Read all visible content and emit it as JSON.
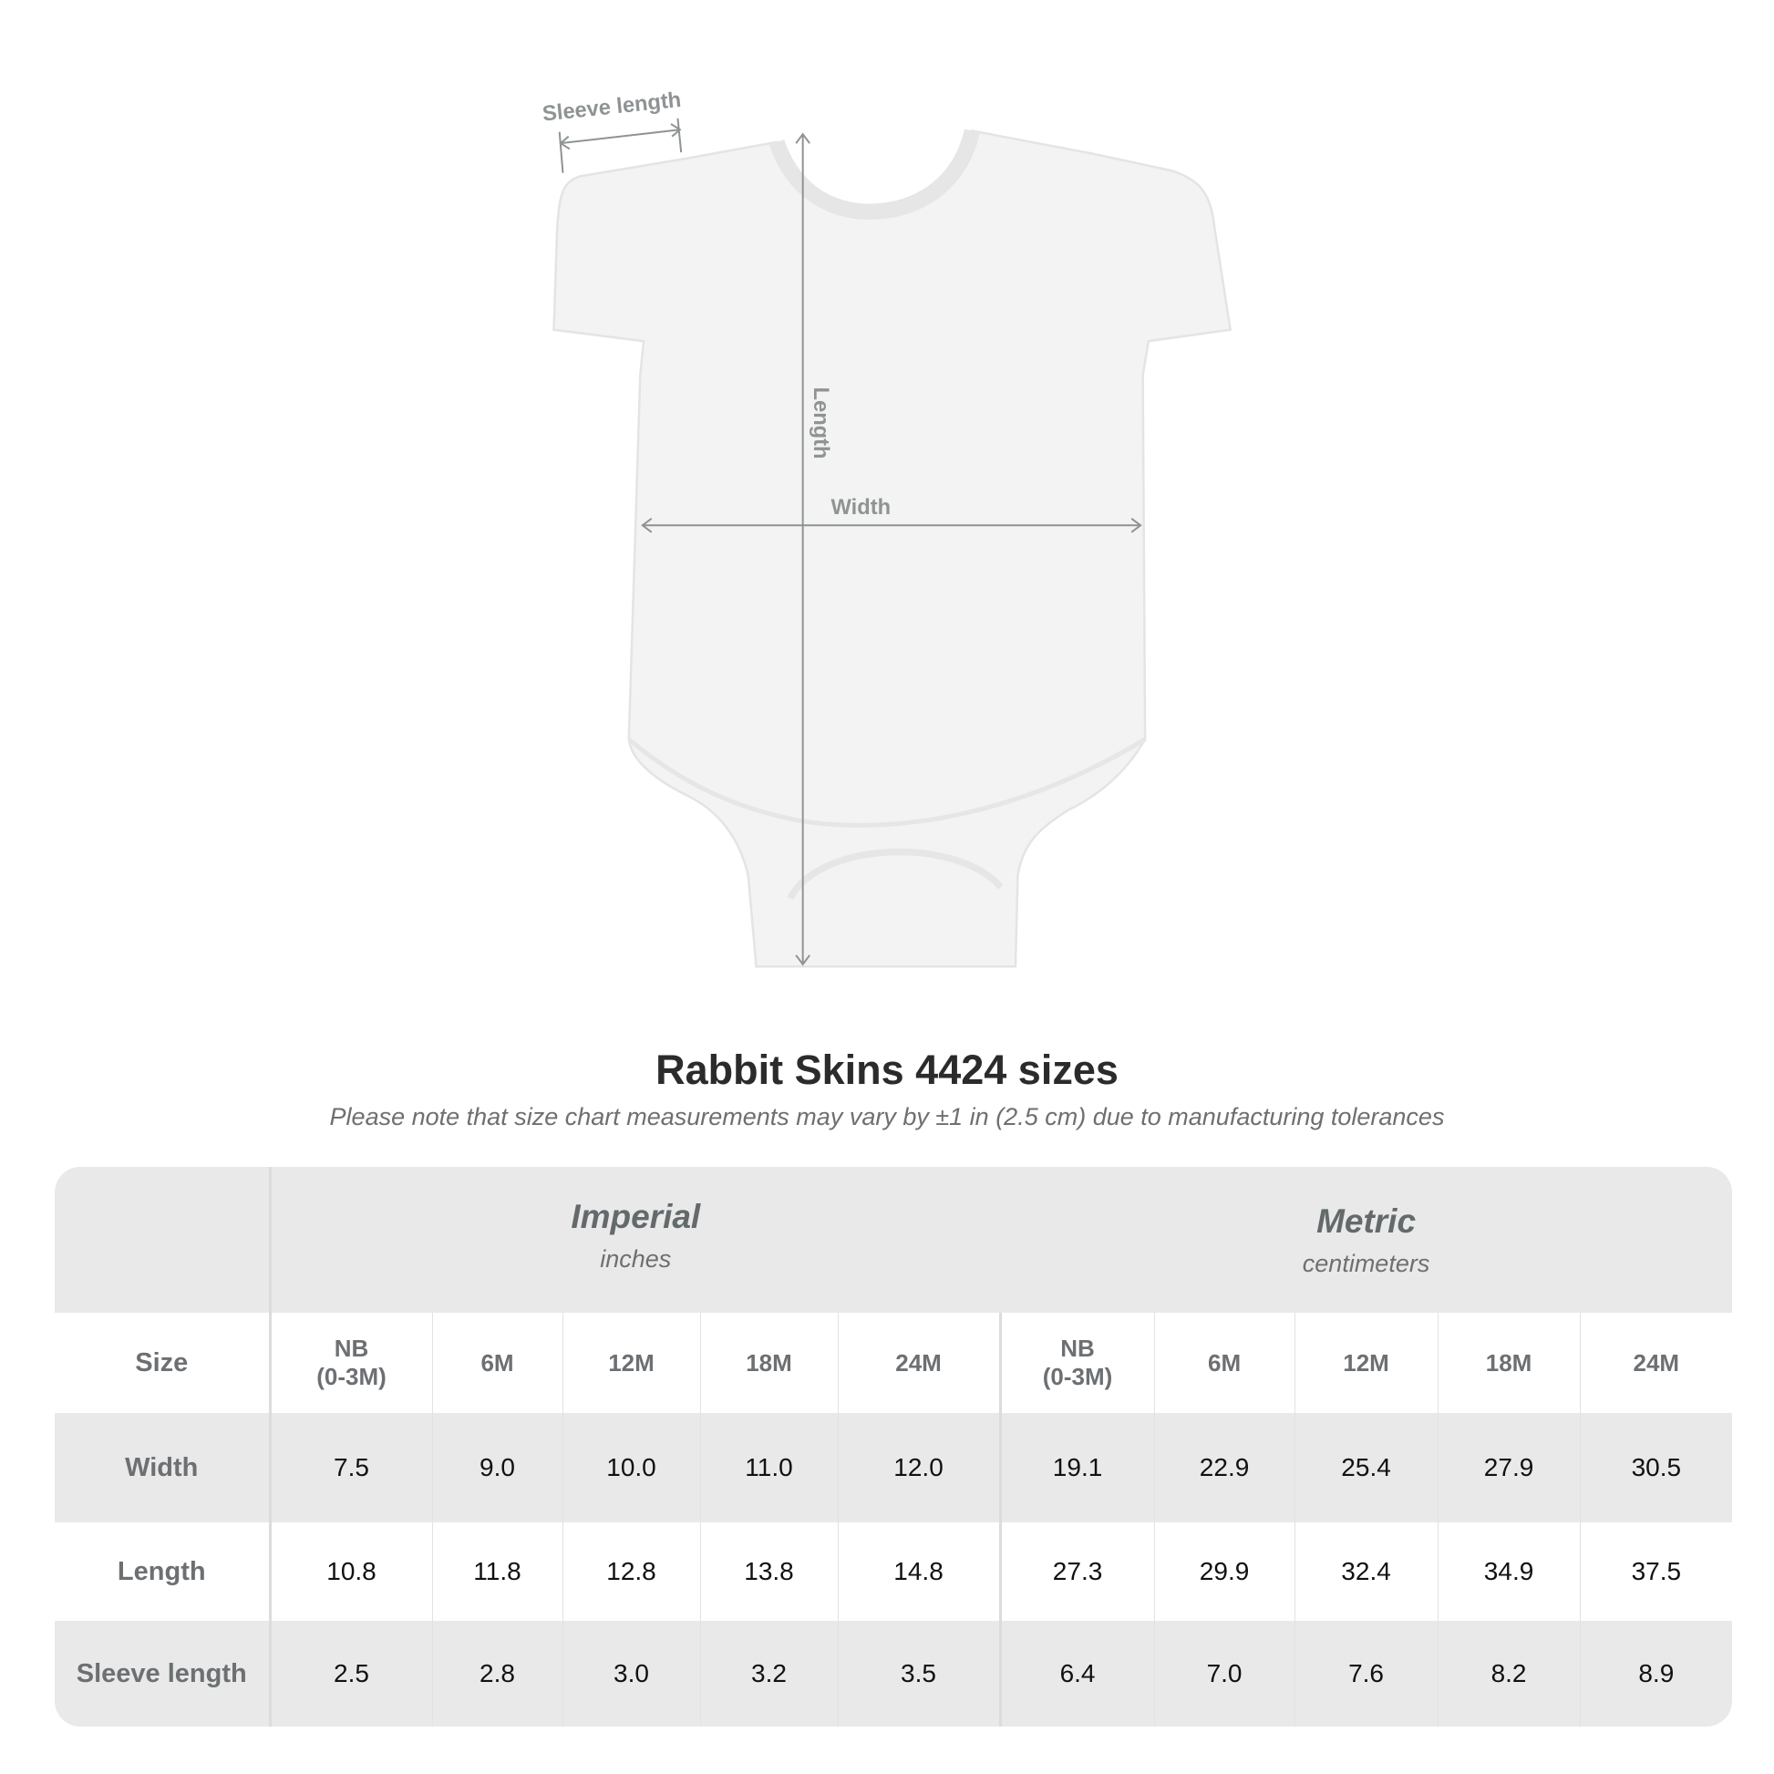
{
  "diagram": {
    "labels": {
      "sleeve": "Sleeve length",
      "length": "Length",
      "width": "Width"
    },
    "line_color": "#8f9394"
  },
  "header": {
    "title": "Rabbit Skins 4424 sizes",
    "note": "Please note that size chart measurements may vary by ±1 in (2.5 cm) due to manufacturing tolerances"
  },
  "table": {
    "groups": [
      {
        "name": "Imperial",
        "unit": "inches"
      },
      {
        "name": "Metric",
        "unit": "centimeters"
      }
    ],
    "size_label": "Size",
    "sizes": [
      [
        "NB",
        "(0-3M)"
      ],
      [
        "6M",
        ""
      ],
      [
        "12M",
        ""
      ],
      [
        "18M",
        ""
      ],
      [
        "24M",
        ""
      ]
    ],
    "rows": [
      {
        "label": "Width",
        "imperial": [
          "7.5",
          "9.0",
          "10.0",
          "11.0",
          "12.0"
        ],
        "metric": [
          "19.1",
          "22.9",
          "25.4",
          "27.9",
          "30.5"
        ]
      },
      {
        "label": "Length",
        "imperial": [
          "10.8",
          "11.8",
          "12.8",
          "13.8",
          "14.8"
        ],
        "metric": [
          "27.3",
          "29.9",
          "32.4",
          "34.9",
          "37.5"
        ]
      },
      {
        "label": "Sleeve length",
        "imperial": [
          "2.5",
          "2.8",
          "3.0",
          "3.2",
          "3.5"
        ],
        "metric": [
          "6.4",
          "7.0",
          "7.6",
          "8.2",
          "8.9"
        ]
      }
    ],
    "colors": {
      "header_bg": "#e9e9e9",
      "label_text": "#6d7073"
    }
  }
}
